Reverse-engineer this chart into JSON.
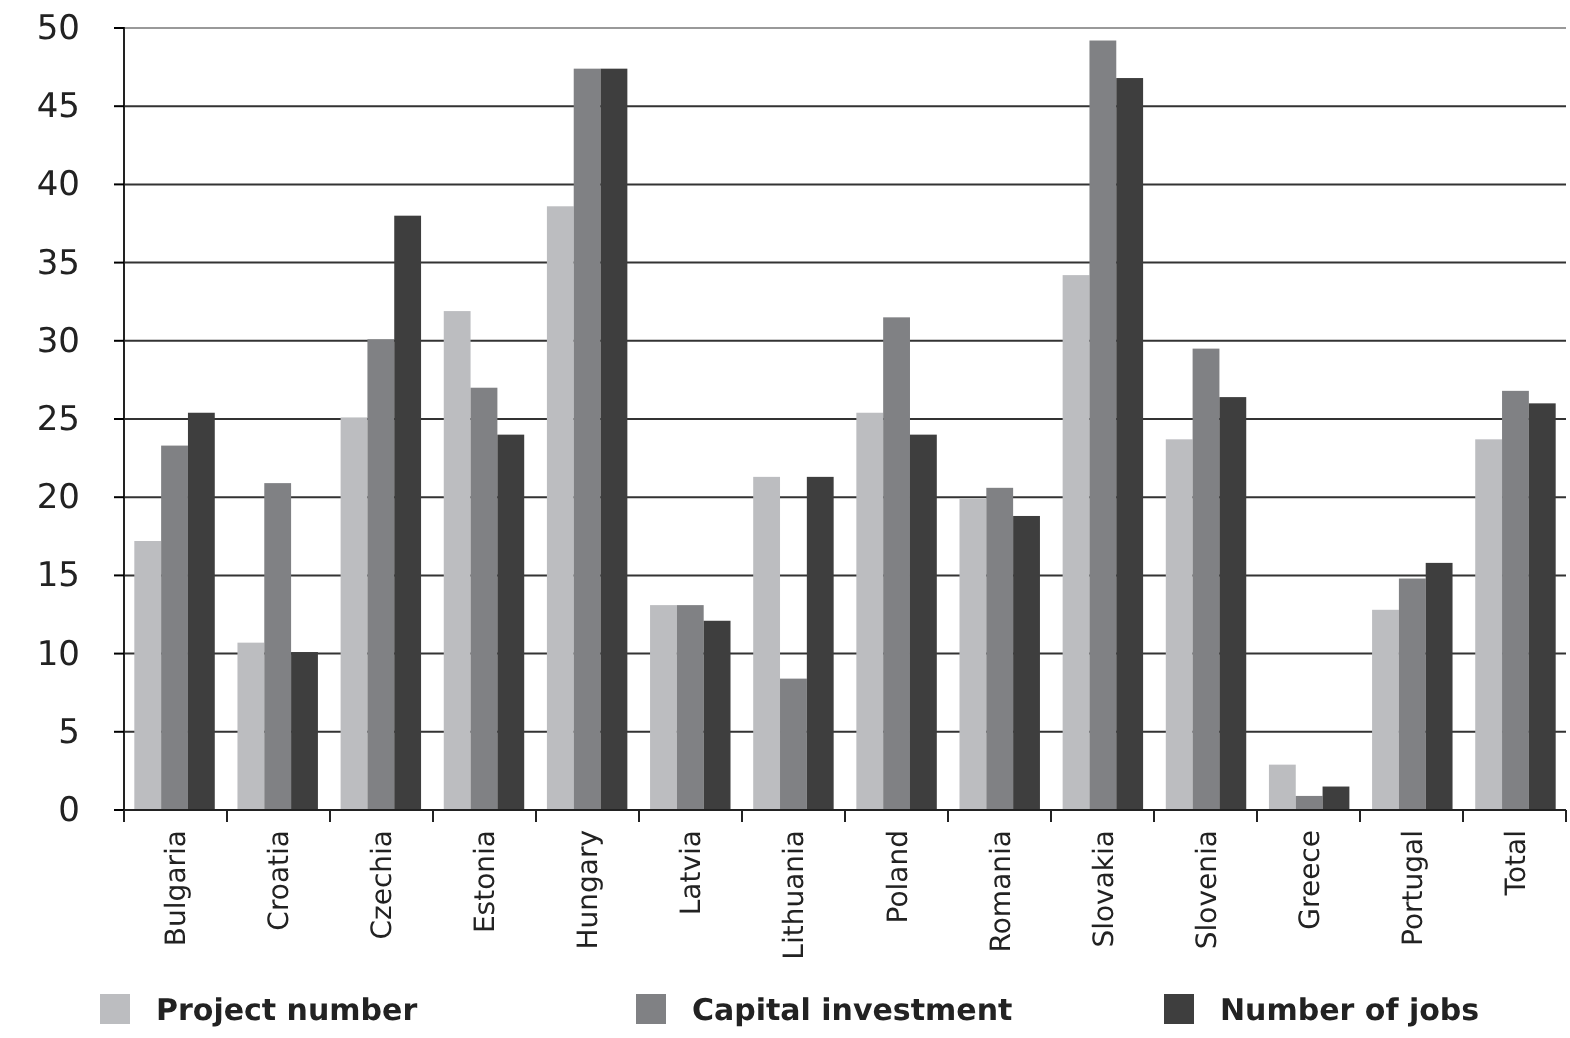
{
  "chart_data": {
    "type": "bar",
    "categories": [
      "Bulgaria",
      "Croatia",
      "Czechia",
      "Estonia",
      "Hungary",
      "Latvia",
      "Lithuania",
      "Poland",
      "Romania",
      "Slovakia",
      "Slovenia",
      "Greece",
      "Portugal",
      "Total"
    ],
    "series": [
      {
        "name": "Project number",
        "color": "#bcbdc0",
        "values": [
          17.2,
          10.7,
          25.1,
          31.9,
          38.6,
          13.1,
          21.3,
          25.4,
          19.9,
          34.2,
          23.7,
          2.9,
          12.8,
          23.7
        ]
      },
      {
        "name": "Capital investment",
        "color": "#808184",
        "values": [
          23.3,
          20.9,
          30.1,
          27.0,
          47.4,
          13.1,
          8.4,
          31.5,
          20.6,
          49.2,
          29.5,
          0.9,
          14.8,
          26.8
        ]
      },
      {
        "name": "Number of jobs",
        "color": "#3e3e3e",
        "values": [
          25.4,
          10.1,
          38.0,
          24.0,
          47.4,
          12.1,
          21.3,
          24.0,
          18.8,
          46.8,
          26.4,
          1.5,
          15.8,
          26.0
        ]
      }
    ],
    "ylim": [
      0,
      50
    ],
    "yticks": [
      0,
      5,
      10,
      15,
      20,
      25,
      30,
      35,
      40,
      45,
      50
    ],
    "grid": "y",
    "legend": "bottom"
  }
}
